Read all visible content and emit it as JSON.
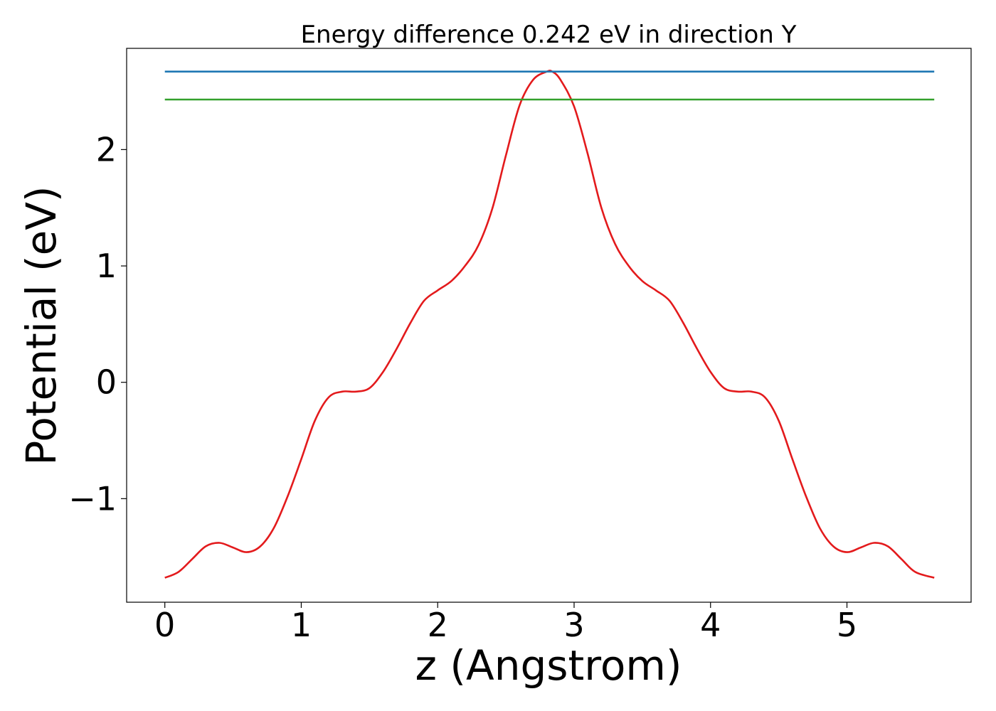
{
  "chart_data": {
    "type": "line",
    "title": "Energy difference 0.242 eV in direction Y",
    "xlabel": "z (Angstrom)",
    "ylabel": "Potential (eV)",
    "xlim": [
      -0.28,
      5.91
    ],
    "ylim": [
      -1.89,
      2.87
    ],
    "xticks": [
      0,
      1,
      2,
      3,
      4,
      5
    ],
    "yticks": [
      -1,
      0,
      1,
      2
    ],
    "xtick_labels": [
      "0",
      "1",
      "2",
      "3",
      "4",
      "5"
    ],
    "ytick_labels": [
      "−1",
      "0",
      "1",
      "2"
    ],
    "grid": false,
    "series": [
      {
        "color": "#e31a1c",
        "x": [
          0,
          0.1,
          0.2,
          0.3,
          0.4,
          0.5,
          0.6,
          0.7,
          0.8,
          0.9,
          1.0,
          1.1,
          1.2,
          1.3,
          1.4,
          1.5,
          1.6,
          1.7,
          1.8,
          1.9,
          2.0,
          2.1,
          2.2,
          2.3,
          2.4,
          2.5,
          2.6,
          2.7,
          2.8,
          2.84,
          2.9,
          3.0,
          3.1,
          3.2,
          3.3,
          3.4,
          3.5,
          3.6,
          3.7,
          3.8,
          3.9,
          4.0,
          4.1,
          4.2,
          4.3,
          4.4,
          4.5,
          4.6,
          4.7,
          4.8,
          4.9,
          5.0,
          5.1,
          5.2,
          5.3,
          5.4,
          5.5,
          5.64
        ],
        "values": [
          -1.68,
          -1.63,
          -1.52,
          -1.41,
          -1.38,
          -1.42,
          -1.46,
          -1.41,
          -1.25,
          -0.98,
          -0.66,
          -0.33,
          -0.13,
          -0.08,
          -0.08,
          -0.05,
          0.09,
          0.29,
          0.51,
          0.7,
          0.79,
          0.87,
          1.0,
          1.18,
          1.49,
          1.95,
          2.38,
          2.6,
          2.67,
          2.67,
          2.6,
          2.37,
          1.96,
          1.5,
          1.19,
          1.0,
          0.87,
          0.79,
          0.7,
          0.51,
          0.29,
          0.09,
          -0.05,
          -0.08,
          -0.08,
          -0.13,
          -0.33,
          -0.66,
          -0.98,
          -1.25,
          -1.41,
          -1.46,
          -1.42,
          -1.38,
          -1.41,
          -1.52,
          -1.63,
          -1.68
        ]
      },
      {
        "color": "#1f78b4",
        "x": [
          0,
          5.64
        ],
        "values": [
          2.67,
          2.67
        ]
      },
      {
        "color": "#33a02c",
        "x": [
          0,
          5.64
        ],
        "values": [
          2.43,
          2.43
        ]
      }
    ]
  }
}
